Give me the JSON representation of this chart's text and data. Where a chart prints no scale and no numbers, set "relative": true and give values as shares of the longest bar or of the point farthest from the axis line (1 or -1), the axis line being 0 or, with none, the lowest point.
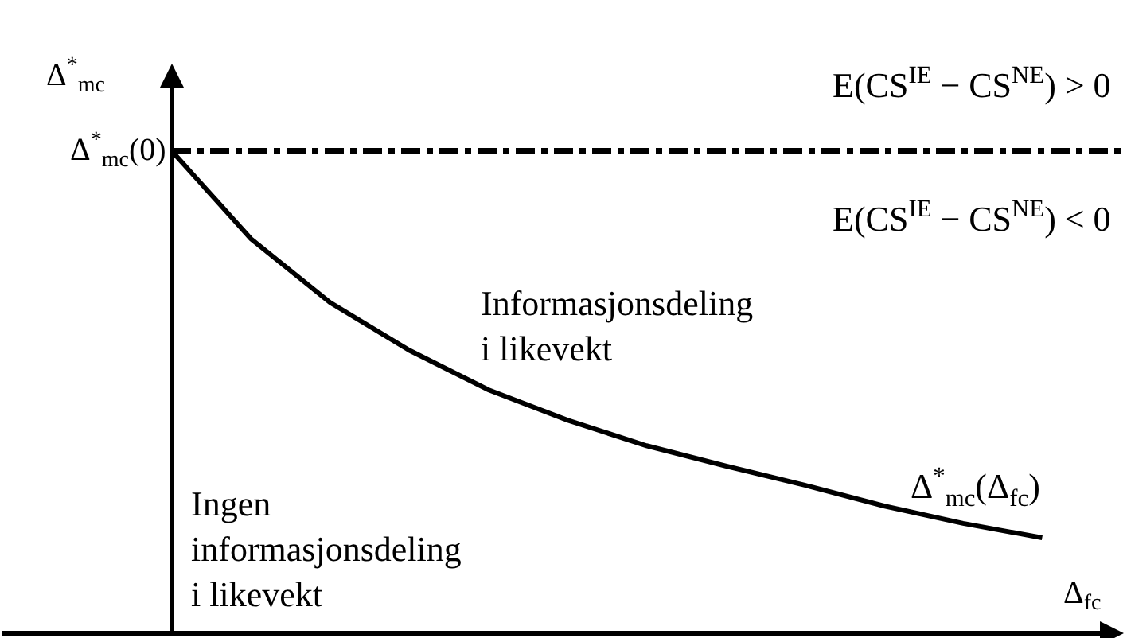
{
  "chart_data": {
    "type": "line",
    "relative": true,
    "ylabel": "Δ$^{*}$$_{mc}$",
    "xlabel": "Δ$_{fc}$",
    "categories": [
      null,
      null,
      null,
      null,
      null,
      null,
      null,
      null,
      null,
      null,
      null,
      null
    ],
    "series": [
      {
        "name": "Δ$^{*}$$_{mc}$(Δ$_{fc}$)",
        "color": "#000000",
        "values": [
          1,
          0.818,
          0.686,
          0.587,
          0.505,
          0.442,
          0.389,
          0.347,
          0.307,
          0.264,
          0.228,
          0.198
        ]
      }
    ],
    "ref_lines": [
      {
        "axis": "y",
        "value": 1,
        "label": "Δ$^{*}$$_{mc}$(0)",
        "color": "#000000",
        "line_style": "dashed"
      }
    ],
    "annotations": [
      "E(CS$^{IE}$ − CS$^{NE}$) > 0",
      "E(CS$^{IE}$ − CS$^{NE}$) < 0",
      "Informasjonsdeling\ni likevekt",
      "Ingen\ninformasjonsdeling\ni likevekt"
    ],
    "marker": "none",
    "line_style": "solid",
    "legend": false
  }
}
